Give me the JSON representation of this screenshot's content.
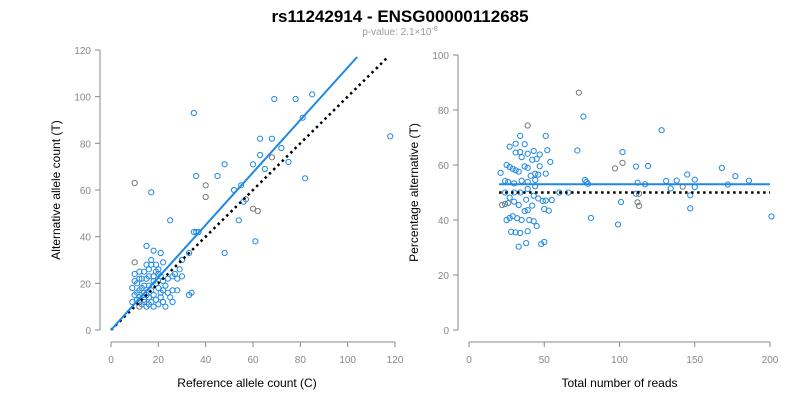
{
  "title": "rs11242914 - ENSG00000112685",
  "subtitle_prefix": "p-value: 2.1×10",
  "subtitle_exp": "-8",
  "colors": {
    "point": "#1E88E5",
    "grey_point": "#777777",
    "fit": "#1E88E5",
    "ref": "#000000",
    "axis": "#888888"
  },
  "chart_data": [
    {
      "type": "scatter",
      "xlabel": "Reference allele count (C)",
      "ylabel": "Alternative allele count (T)",
      "xlim": [
        0,
        120
      ],
      "ylim": [
        0,
        120
      ],
      "xticks": [
        0,
        20,
        40,
        60,
        80,
        100,
        120
      ],
      "yticks": [
        0,
        20,
        40,
        60,
        80,
        100,
        120
      ],
      "fit_line": {
        "slope": 1.125,
        "x_range": [
          0,
          104
        ]
      },
      "reference_line": {
        "slope": 1,
        "x_range": [
          0,
          117
        ]
      },
      "grey_points": [
        [
          10,
          63
        ],
        [
          40,
          62
        ],
        [
          40,
          57
        ],
        [
          62,
          51
        ],
        [
          60,
          52
        ],
        [
          57,
          56
        ],
        [
          68,
          74
        ],
        [
          10,
          29
        ],
        [
          12,
          10
        ],
        [
          14,
          12
        ]
      ],
      "points": [
        [
          17,
          59
        ],
        [
          35,
          93
        ],
        [
          69,
          99
        ],
        [
          78,
          99
        ],
        [
          85,
          101
        ],
        [
          118,
          83
        ],
        [
          63,
          82
        ],
        [
          68,
          82
        ],
        [
          63,
          75
        ],
        [
          60,
          71
        ],
        [
          48,
          71
        ],
        [
          45,
          66
        ],
        [
          36,
          66
        ],
        [
          52,
          60
        ],
        [
          55,
          62
        ],
        [
          56,
          55
        ],
        [
          65,
          69
        ],
        [
          75,
          72
        ],
        [
          81,
          91
        ],
        [
          72,
          78
        ],
        [
          82,
          65
        ],
        [
          61,
          38
        ],
        [
          54,
          47
        ],
        [
          48,
          33
        ],
        [
          35,
          42
        ],
        [
          36,
          42
        ],
        [
          37,
          42
        ],
        [
          30,
          30
        ],
        [
          25,
          47
        ],
        [
          33,
          15
        ],
        [
          34,
          16
        ],
        [
          26,
          23
        ],
        [
          27,
          24
        ],
        [
          30,
          23
        ],
        [
          33,
          33
        ],
        [
          29,
          26
        ],
        [
          22,
          29
        ],
        [
          15,
          36
        ],
        [
          18,
          34
        ],
        [
          21,
          33
        ],
        [
          14,
          25
        ],
        [
          12,
          25
        ],
        [
          16,
          26
        ],
        [
          17,
          28
        ],
        [
          19,
          28
        ],
        [
          20,
          26
        ],
        [
          13,
          22
        ],
        [
          15,
          22
        ],
        [
          18,
          23
        ],
        [
          21,
          23
        ],
        [
          11,
          20
        ],
        [
          12,
          17
        ],
        [
          13,
          18
        ],
        [
          14,
          16
        ],
        [
          15,
          15
        ],
        [
          16,
          19
        ],
        [
          17,
          17
        ],
        [
          18,
          15
        ],
        [
          19,
          20
        ],
        [
          20,
          18
        ],
        [
          21,
          16
        ],
        [
          22,
          17
        ],
        [
          23,
          19
        ],
        [
          24,
          16
        ],
        [
          25,
          14
        ],
        [
          26,
          17
        ],
        [
          11,
          13
        ],
        [
          12,
          12
        ],
        [
          13,
          11
        ],
        [
          14,
          13
        ],
        [
          15,
          10
        ],
        [
          16,
          11
        ],
        [
          17,
          12
        ],
        [
          18,
          10
        ],
        [
          19,
          13
        ],
        [
          20,
          11
        ],
        [
          21,
          14
        ],
        [
          22,
          12
        ],
        [
          23,
          10
        ],
        [
          10,
          15
        ],
        [
          11,
          16
        ],
        [
          9,
          12
        ],
        [
          9,
          18
        ],
        [
          10,
          21
        ],
        [
          12,
          14
        ],
        [
          14,
          19
        ],
        [
          16,
          14
        ],
        [
          18,
          21
        ],
        [
          20,
          24
        ],
        [
          22,
          21
        ],
        [
          24,
          22
        ],
        [
          28,
          17
        ],
        [
          28,
          22
        ],
        [
          16,
          23
        ],
        [
          19,
          25
        ],
        [
          10,
          24
        ],
        [
          12,
          22
        ],
        [
          26,
          12
        ],
        [
          17,
          30
        ],
        [
          15,
          28
        ]
      ]
    },
    {
      "type": "scatter",
      "xlabel": "Total number of reads",
      "ylabel": "Percentage alternative (T)",
      "xlim": [
        0,
        200
      ],
      "ylim": [
        0,
        100
      ],
      "xticks": [
        0,
        50,
        100,
        150,
        200
      ],
      "yticks": [
        0,
        20,
        40,
        60,
        80,
        100
      ],
      "fit_line": {
        "y": 53,
        "x_range": [
          20,
          200
        ]
      },
      "reference_line": {
        "y": 50,
        "x_range": [
          20,
          200
        ]
      },
      "points_note": "percentage = alt/(ref+alt), total = ref+alt, from left panel"
    }
  ]
}
